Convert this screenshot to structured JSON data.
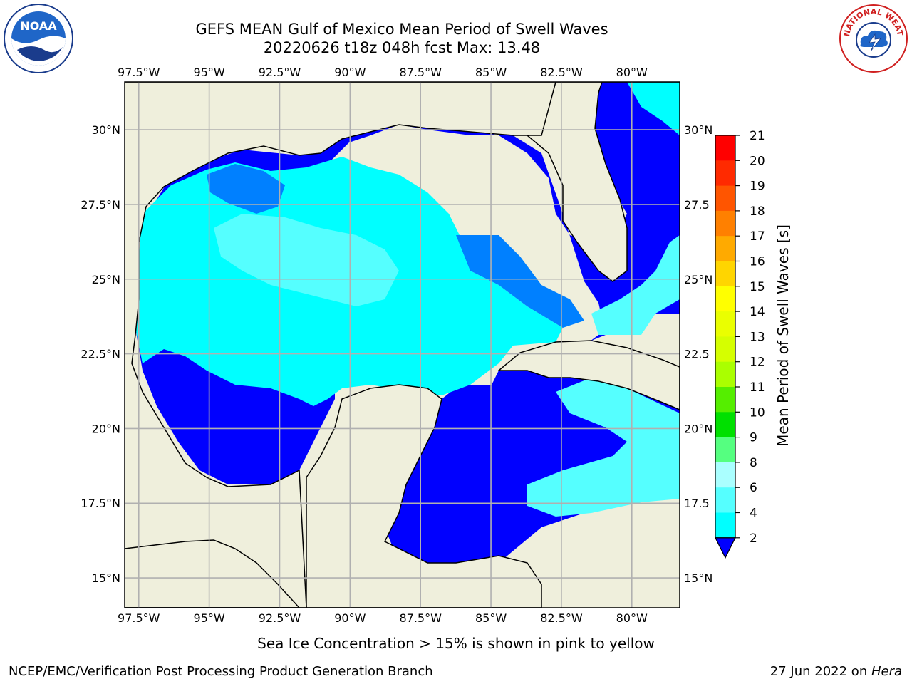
{
  "title": {
    "line1": "GEFS MEAN Gulf of Mexico Mean Period of Swell Waves",
    "line2": "20220626 t18z 048h fcst   Max: 13.48"
  },
  "logos": {
    "left": {
      "name": "noaa-logo",
      "text": "NOAA"
    },
    "right": {
      "name": "nws-logo",
      "text": "NATIONAL WEATHER SERVICE"
    }
  },
  "map": {
    "lon_labels": [
      "97.5°W",
      "95°W",
      "92.5°W",
      "90°W",
      "87.5°W",
      "85°W",
      "82.5°W",
      "80°W"
    ],
    "lat_labels_left": [
      "30°N",
      "27.5°N",
      "25°N",
      "22.5°N",
      "20°N",
      "17.5°N",
      "15°N"
    ],
    "lat_labels_right": [
      "30°N",
      "27.5",
      "25°N",
      "22.5",
      "20°N",
      "17.5",
      "15°N"
    ],
    "lon_values": [
      -97.5,
      -95,
      -92.5,
      -90,
      -87.5,
      -85,
      -82.5,
      -80
    ],
    "lat_values": [
      30,
      27.5,
      25,
      22.5,
      20,
      17.5,
      15
    ],
    "extent": {
      "lon": [
        -98,
        -78.3
      ],
      "lat": [
        14,
        31.6
      ]
    },
    "land_color": "#efefdc",
    "ocean_nodata_color": "#ffffff"
  },
  "colorbar": {
    "label": "Mean Period of Swell Waves [s]",
    "ticks": [
      "21",
      "20",
      "19",
      "18",
      "17",
      "16",
      "15",
      "14",
      "13",
      "12",
      "11",
      "10",
      "9",
      "8",
      "6",
      "4",
      "2"
    ],
    "colors": [
      "#ff0000",
      "#ff2a00",
      "#ff5500",
      "#ff8000",
      "#ffaa00",
      "#ffd500",
      "#ffff00",
      "#eaff00",
      "#d5ff00",
      "#aaff00",
      "#55ee00",
      "#00e000",
      "#55ff80",
      "#aaffff",
      "#55ffff",
      "#00ffff",
      "#0080ff",
      "#0000ff"
    ]
  },
  "note": "Sea Ice Concentration > 15% is shown in pink to yellow",
  "footer": {
    "left": "NCEP/EMC/Verification Post Processing Product Generation Branch",
    "right_prefix": "27 Jun 2022 on ",
    "right_host": "Hera"
  }
}
